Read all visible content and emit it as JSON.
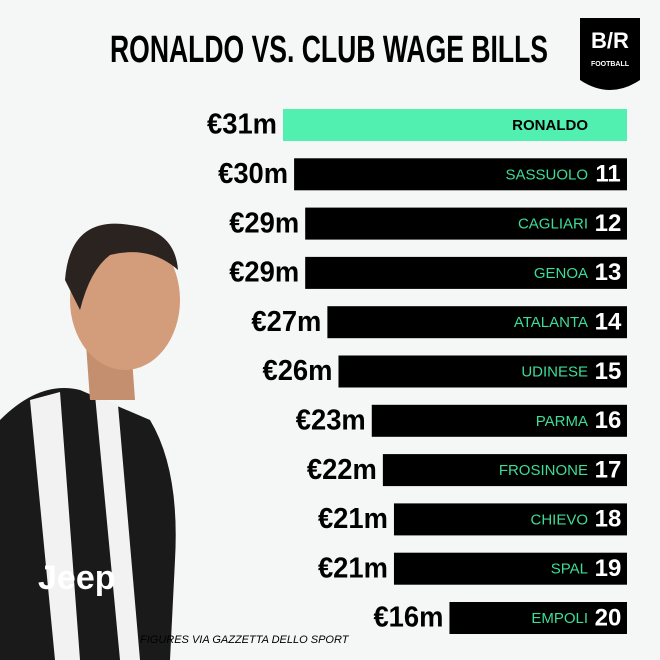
{
  "chart_data": {
    "type": "bar",
    "orientation": "horizontal",
    "title": "RONALDO VS. CLUB WAGE BILLS",
    "logo": {
      "mark": "B/R",
      "sub": "FOOTBALL"
    },
    "categories": [
      "RONALDO",
      "SASSUOLO",
      "CAGLIARI",
      "GENOA",
      "ATALANTA",
      "UDINESE",
      "PARMA",
      "FROSINONE",
      "CHIEVO",
      "SPAL",
      "EMPOLI"
    ],
    "values": [
      31,
      30,
      29,
      29,
      27,
      26,
      23,
      22,
      21,
      21,
      16
    ],
    "value_labels": [
      "€31m",
      "€30m",
      "€29m",
      "€29m",
      "€27m",
      "€26m",
      "€23m",
      "€22m",
      "€21m",
      "€21m",
      "€16m"
    ],
    "ranks": [
      null,
      11,
      12,
      13,
      14,
      15,
      16,
      17,
      18,
      19,
      20
    ],
    "colors": [
      "#52f0b0",
      "#000000",
      "#000000",
      "#000000",
      "#000000",
      "#000000",
      "#000000",
      "#000000",
      "#000000",
      "#000000",
      "#000000"
    ],
    "label_colors": [
      "#000000",
      "#3ddc97",
      "#3ddc97",
      "#3ddc97",
      "#3ddc97",
      "#3ddc97",
      "#3ddc97",
      "#3ddc97",
      "#3ddc97",
      "#3ddc97",
      "#3ddc97"
    ],
    "source": "FIGURES VIA GAZZETTA DELLO SPORT"
  }
}
